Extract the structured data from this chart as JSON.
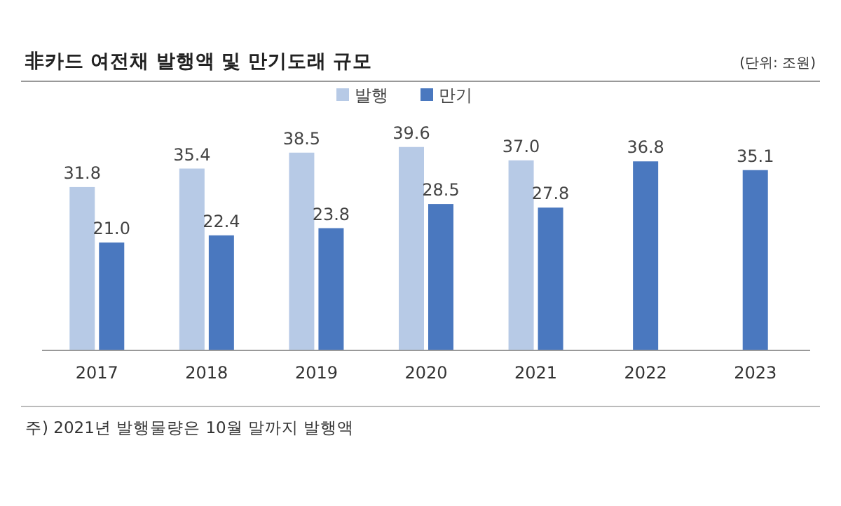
{
  "chart_data": {
    "type": "bar",
    "title": "非카드 여전채 발행액 및 만기도래 규모",
    "subtitle": "(단위: 조원)",
    "categories": [
      "2017",
      "2018",
      "2019",
      "2020",
      "2021",
      "2022",
      "2023"
    ],
    "series": [
      {
        "name": "발행",
        "color": "#b7cae6",
        "values": [
          31.8,
          35.4,
          38.5,
          39.6,
          37.0,
          null,
          null
        ],
        "value_labels": [
          "31.8",
          "35.4",
          "38.5",
          "39.6",
          "37.0",
          null,
          null
        ]
      },
      {
        "name": "만기",
        "color": "#4a78bf",
        "values": [
          21.0,
          22.4,
          23.8,
          28.5,
          27.8,
          36.8,
          35.1
        ],
        "value_labels": [
          "21.0",
          "22.4",
          "23.8",
          "28.5",
          "27.8",
          "36.8",
          "35.1"
        ]
      }
    ],
    "legend": "top",
    "grid": false,
    "annotations": [
      "주) 2021년 발행물량은 10월 말까지 발행액"
    ]
  }
}
